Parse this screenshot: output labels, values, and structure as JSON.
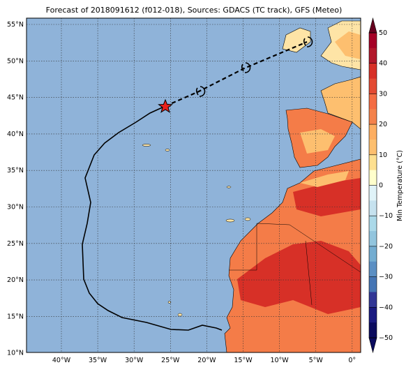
{
  "title": "Forecast of 2018091612 (f012-018), Sources: GDACS (TC track), GFS (Meteo)",
  "lat_labels": [
    "55°N",
    "50°N",
    "45°N",
    "40°N",
    "35°N",
    "30°N",
    "25°N",
    "20°N",
    "15°N",
    "10°N"
  ],
  "lon_labels": [
    "40°W",
    "35°W",
    "30°W",
    "25°W",
    "20°W",
    "15°W",
    "10°W",
    "5°W",
    "0°"
  ],
  "colorbar": {
    "label": "Min Temperature (°C)",
    "ticks": [
      "50",
      "40",
      "30",
      "20",
      "10",
      "0",
      "−10",
      "−20",
      "−30",
      "−40",
      "−50"
    ]
  }
}
